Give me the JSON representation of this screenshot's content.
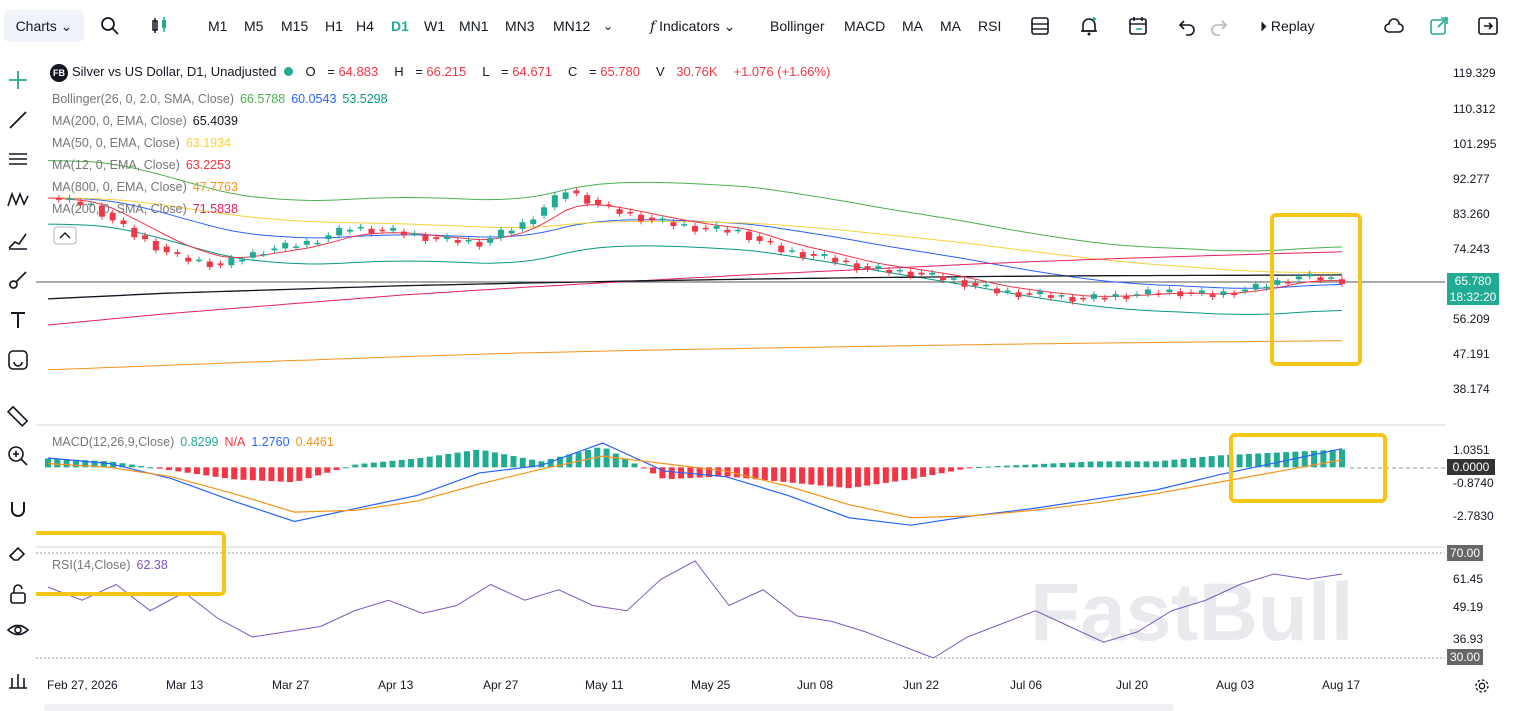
{
  "toolbar": {
    "charts_label": "Charts",
    "timeframes": [
      "M1",
      "M5",
      "M15",
      "H1",
      "H4",
      "D1",
      "W1",
      "MN1",
      "MN3",
      "MN12"
    ],
    "active_timeframe": "D1",
    "indicators_label": "Indicators",
    "indicator_shortcuts": [
      "Bollinger",
      "MACD",
      "MA",
      "MA",
      "RSI"
    ],
    "replay_label": "Replay"
  },
  "symbol": {
    "badge": "FB",
    "title": "Silver vs US Dollar, D1, Unadjusted",
    "open_label": "O",
    "open": "64.883",
    "high_label": "H",
    "high": "66.215",
    "low_label": "L",
    "low": "64.671",
    "close_label": "C",
    "close": "65.780",
    "volume_label": "V",
    "volume": "30.76K",
    "change": "+1.076 (+1.66%)"
  },
  "indicators": [
    {
      "label": "Bollinger(26, 0, 2.0, SMA, Close)",
      "values": [
        "66.5788",
        "60.0543",
        "53.5298"
      ],
      "colors": [
        "#4caf50",
        "#2962ff",
        "#089981"
      ]
    },
    {
      "label": "MA(200, 0, EMA, Close)",
      "values": [
        "65.4039"
      ],
      "colors": [
        "#131722"
      ]
    },
    {
      "label": "MA(50, 0, EMA, Close)",
      "values": [
        "63.1934"
      ],
      "colors": [
        "#f7d13a"
      ]
    },
    {
      "label": "MA(12, 0, EMA, Close)",
      "values": [
        "63.2253"
      ],
      "colors": [
        "#f23645"
      ]
    },
    {
      "label": "MA(800, 0, EMA, Close)",
      "values": [
        "47.7763"
      ],
      "colors": [
        "#f7931a"
      ]
    },
    {
      "label": "MA(200, 0, SMA, Close)",
      "values": [
        "71.5838"
      ],
      "colors": [
        "#e91e63"
      ]
    }
  ],
  "price_axis": {
    "ticks": [
      "119.329",
      "110.312",
      "101.295",
      "92.277",
      "83.260",
      "74.243",
      "56.209",
      "47.191",
      "38.174"
    ],
    "last_price": "65.780",
    "countdown": "18:32:20"
  },
  "macd": {
    "label": "MACD(12,26,9,Close)",
    "macd_value": "0.8299",
    "signal_value": "N/A",
    "hist_value": "1.2760",
    "third_value": "0.4461",
    "ticks": [
      "1.0351",
      "-0.8740",
      "-2.7830"
    ],
    "zero_label": "0.0000"
  },
  "rsi": {
    "label": "RSI(14,Close)",
    "value": "62.38",
    "ticks": [
      "61.45",
      "49.19",
      "36.93"
    ],
    "upper_label": "70.00",
    "lower_label": "30.00"
  },
  "watermark": "FastBull",
  "dates": [
    "Feb 27, 2026",
    "Mar 13",
    "Mar 27",
    "Apr 13",
    "Apr 27",
    "May 11",
    "May 25",
    "Jun 08",
    "Jun 22",
    "Jul 06",
    "Jul 20",
    "Aug 03",
    "Aug 17"
  ],
  "colors": {
    "up": "#22ab94",
    "down": "#f23645",
    "highlight": "#f5c518",
    "accent": "#22ab94"
  },
  "chart_data": {
    "type": "line",
    "title": "Silver vs US Dollar, D1, Unadjusted",
    "x_ticks": [
      "Feb 27, 2026",
      "Mar 13",
      "Mar 27",
      "Apr 13",
      "Apr 27",
      "May 11",
      "May 25",
      "Jun 08",
      "Jun 22",
      "Jul 06",
      "Jul 20",
      "Aug 03",
      "Aug 17"
    ],
    "ylim": [
      33,
      124
    ],
    "series": [
      {
        "name": "Close",
        "values": [
          86,
          84,
          76,
          70,
          68,
          72,
          74,
          78,
          77,
          75,
          74,
          79,
          88,
          83,
          80,
          78,
          77,
          72,
          70,
          67,
          66,
          64,
          61,
          60,
          59,
          60,
          61,
          60,
          62,
          65,
          64
        ]
      },
      {
        "name": "MA(200, 0, EMA, Close)",
        "values": [
          59,
          60.5,
          61.5,
          62.5,
          63.2,
          63.8,
          64.3,
          64.7,
          65,
          65.2,
          65.3,
          65.4
        ]
      },
      {
        "name": "MA(200, 0, SMA, Close)",
        "values": [
          52,
          55,
          57.5,
          60,
          62,
          63.8,
          65.5,
          67,
          68.5,
          69.7,
          70.7,
          71.6
        ]
      },
      {
        "name": "MA(800, 0, EMA, Close)",
        "values": [
          40,
          41.2,
          42.4,
          43.5,
          44.5,
          45.2,
          45.8,
          46.3,
          46.8,
          47.2,
          47.5,
          47.8
        ]
      }
    ],
    "rsi": {
      "ylim": [
        25,
        75
      ],
      "levels": [
        70,
        30
      ],
      "values": [
        57,
        52,
        58,
        48,
        55,
        45,
        38,
        40,
        42,
        48,
        52,
        47,
        50,
        58,
        52,
        56,
        50,
        48,
        60,
        67,
        50,
        56,
        46,
        44,
        40,
        35,
        30,
        38,
        43,
        48,
        42,
        36,
        40,
        48,
        52,
        58,
        62,
        60,
        62
      ]
    },
    "macd": {
      "ylim": [
        -4,
        2
      ],
      "macd_values": [
        0.5,
        0.2,
        -0.6,
        -1.8,
        -2.9,
        -2.2,
        -1.5,
        -0.3,
        0.1,
        1.3,
        -0.2,
        -0.5,
        -1.5,
        -2.7,
        -3.1,
        -2.6,
        -2.2,
        -1.7,
        -1.2,
        -0.4,
        0.3,
        1.0
      ],
      "signal_values": [
        0.2,
        0.0,
        -0.5,
        -1.4,
        -2.4,
        -2.3,
        -1.8,
        -0.9,
        -0.1,
        0.6,
        0.2,
        -0.2,
        -1.0,
        -2.0,
        -2.7,
        -2.6,
        -2.3,
        -1.9,
        -1.4,
        -0.8,
        -0.2,
        0.4
      ]
    }
  }
}
